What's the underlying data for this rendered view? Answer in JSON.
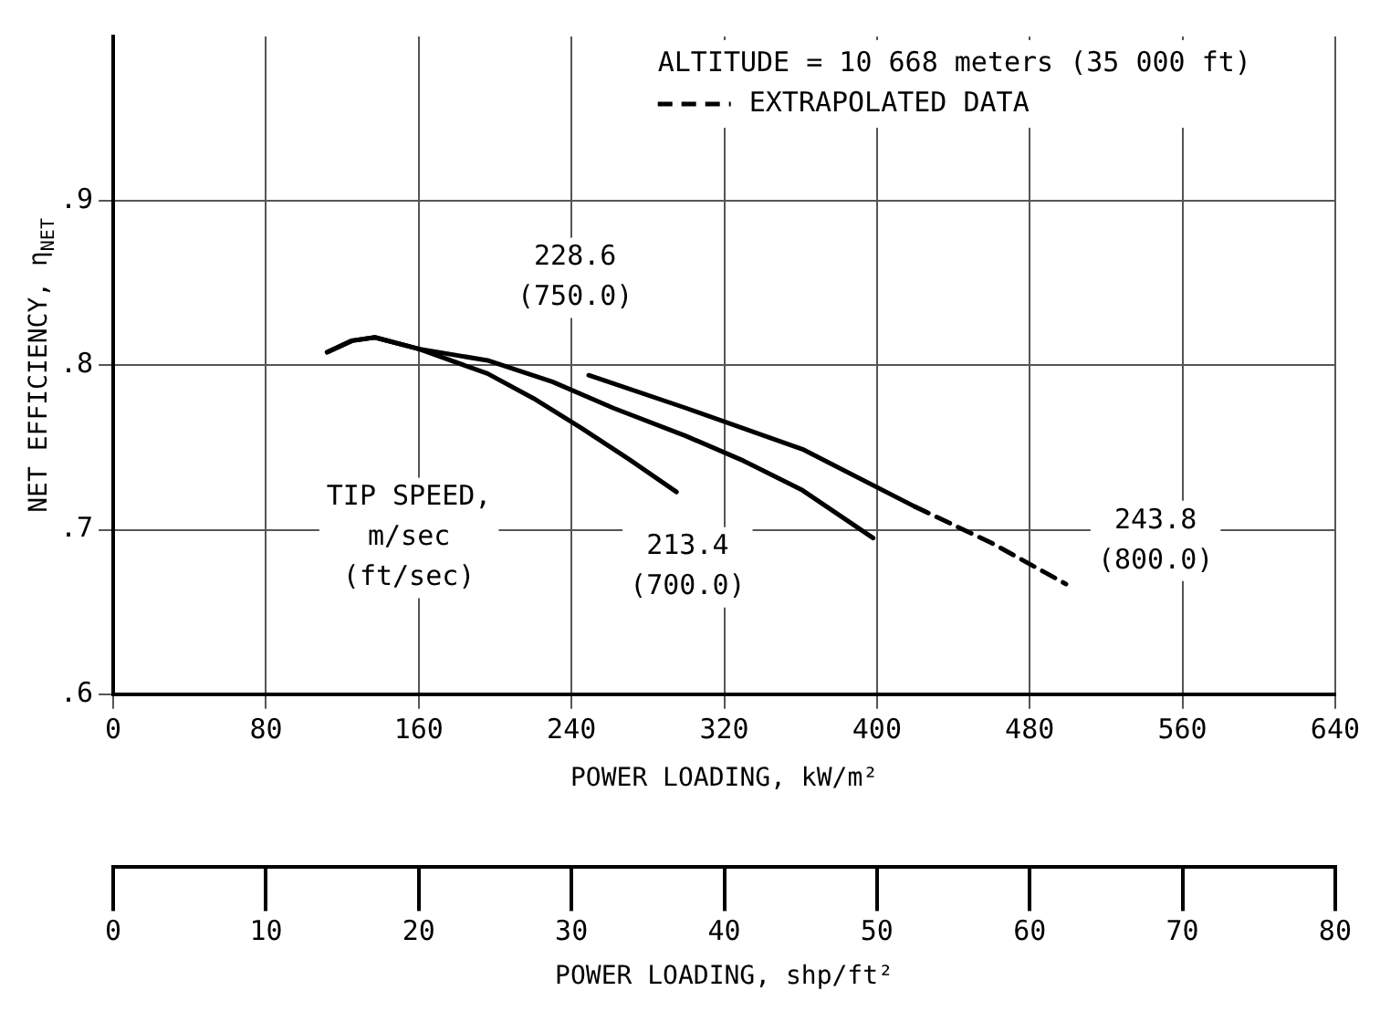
{
  "chart_data": {
    "type": "line",
    "xlabel": "POWER LOADING, kW/m²",
    "ylabel": "NET EFFICIENCY, η$_{NET}$",
    "x2label": "POWER LOADING, shp/ft²",
    "legend_title": "ALTITUDE = 10 668 meters (35 000 ft)",
    "legend": "top right",
    "grid": true,
    "xlim": [
      0,
      640
    ],
    "xticks": [
      0,
      80,
      160,
      240,
      320,
      400,
      480,
      560,
      640
    ],
    "ylim": [
      0.6,
      1.0
    ],
    "yticks": [
      {
        "value": 0.6,
        "label": ".6"
      },
      {
        "value": 0.7,
        "label": ".7"
      },
      {
        "value": 0.8,
        "label": ".8"
      },
      {
        "value": 0.9,
        "label": ".9"
      }
    ],
    "x2lim": [
      0,
      80
    ],
    "x2ticks": [
      0,
      10,
      20,
      30,
      40,
      50,
      60,
      70,
      80
    ],
    "series": [
      {
        "color": "#000000",
        "line_style": "solid",
        "x": [
          112,
          125,
          137,
          160,
          196,
          220,
          245,
          270,
          295
        ],
        "values": [
          0.808,
          0.815,
          0.817,
          0.81,
          0.795,
          0.78,
          0.762,
          0.743,
          0.723
        ]
      },
      {
        "color": "#000000",
        "line_style": "solid",
        "x": [
          112,
          125,
          137,
          160,
          196,
          230,
          262,
          300,
          330,
          361,
          398
        ],
        "values": [
          0.808,
          0.815,
          0.817,
          0.81,
          0.803,
          0.79,
          0.774,
          0.757,
          0.742,
          0.724,
          0.695
        ]
      },
      {
        "color": "#000000",
        "line_style": "solid",
        "x": [
          249,
          300,
          361,
          420
        ],
        "values": [
          0.794,
          0.774,
          0.749,
          0.714
        ]
      },
      {
        "name": "EXTRAPOLATED DATA",
        "color": "#000000",
        "line_style": "dashed",
        "x": [
          420,
          460,
          499
        ],
        "values": [
          0.714,
          0.692,
          0.667
        ]
      }
    ],
    "annotations": [
      "228.6\n(750.0)",
      "TIP SPEED,\nm/sec\n(ft/sec)",
      "213.4\n(700.0)",
      "243.8\n(800.0)"
    ]
  }
}
